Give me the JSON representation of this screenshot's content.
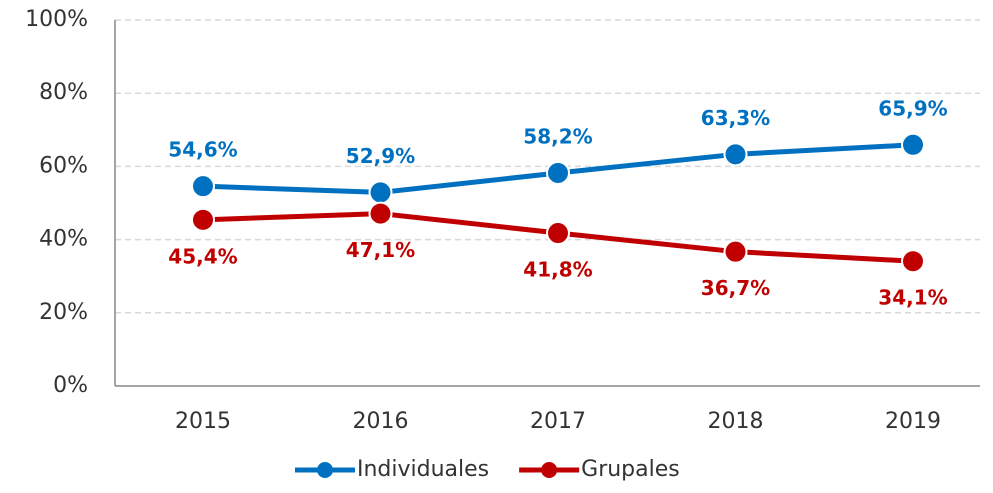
{
  "chart_data": {
    "type": "line",
    "categories": [
      "2015",
      "2016",
      "2017",
      "2018",
      "2019"
    ],
    "series": [
      {
        "name": "Individuales",
        "color": "#0070c0",
        "values": [
          54.6,
          52.9,
          58.2,
          63.3,
          65.9
        ],
        "value_labels": [
          "54,6%",
          "52,9%",
          "58,2%",
          "63,3%",
          "65,9%"
        ]
      },
      {
        "name": "Grupales",
        "color": "#c00000",
        "values": [
          45.4,
          47.1,
          41.8,
          36.7,
          34.1
        ],
        "value_labels": [
          "45,4%",
          "47,1%",
          "41,8%",
          "36,7%",
          "34,1%"
        ]
      }
    ],
    "ylim": [
      0,
      100
    ],
    "yticks": [
      {
        "value": 0,
        "label": "0%"
      },
      {
        "value": 20,
        "label": "20%"
      },
      {
        "value": 40,
        "label": "40%"
      },
      {
        "value": 60,
        "label": "60%"
      },
      {
        "value": 80,
        "label": "80%"
      },
      {
        "value": 100,
        "label": "100%"
      }
    ],
    "grid": true,
    "legend": "bottom"
  }
}
